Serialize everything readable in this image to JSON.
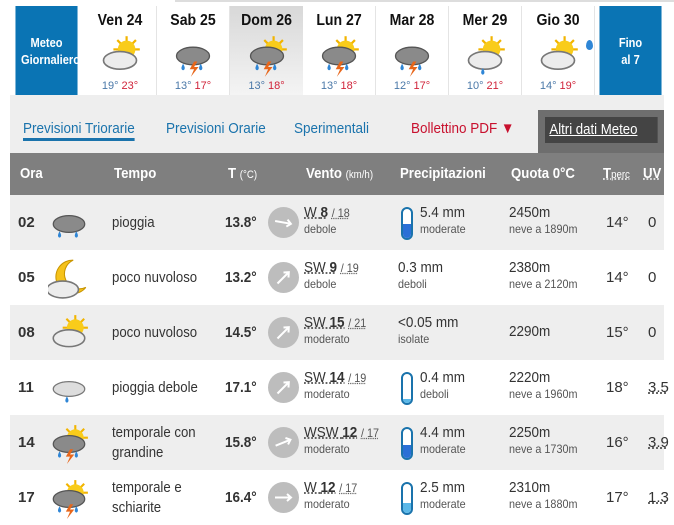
{
  "nav": {
    "daily_label": "Meteo Giornaliero",
    "until_label": "Fino al 7"
  },
  "days": [
    {
      "name": "Ven 24",
      "min": "19°",
      "max": "23°",
      "icon": "sun-cloud-icon"
    },
    {
      "name": "Sab 25",
      "min": "13°",
      "max": "17°",
      "icon": "thunderstorm-icon"
    },
    {
      "name": "Dom 26",
      "min": "13°",
      "max": "18°",
      "icon": "sun-thunderstorm-icon",
      "selected": true
    },
    {
      "name": "Lun 27",
      "min": "13°",
      "max": "18°",
      "icon": "sun-thunderstorm-icon"
    },
    {
      "name": "Mar 28",
      "min": "12°",
      "max": "17°",
      "icon": "thunderstorm-icon"
    },
    {
      "name": "Mer 29",
      "min": "10°",
      "max": "21°",
      "icon": "sun-cloud-rain-icon"
    },
    {
      "name": "Gio 30",
      "min": "14°",
      "max": "19°",
      "icon": "sun-cloud-icon"
    }
  ],
  "tabs": [
    {
      "label": "Previsioni Triorarie",
      "active": true
    },
    {
      "label": "Previsioni Orarie"
    },
    {
      "label": "Sperimentali"
    }
  ],
  "pdf_label": "Bollettino PDF ▼",
  "altri_label": "Altri dati Meteo",
  "header": {
    "ora": "Ora",
    "tempo": "Tempo",
    "t": "T",
    "t_unit": "(°C)",
    "vento": "Vento",
    "vento_unit": "(km/h)",
    "precip": "Precipitazioni",
    "quota": "Quota 0°C",
    "tperc": "T",
    "tperc_sub": "perc",
    "uv": "UV"
  },
  "colors": {
    "accent": "#0a74b4",
    "header": "#7f7f7f",
    "min": "#4a78a8",
    "max": "#d0243a",
    "pdf": "#c8102e"
  },
  "rows": [
    {
      "ora": "02",
      "icon": "rain-cloud-icon",
      "desc": "pioggia",
      "temp": "13.8°",
      "dir": "W",
      "speed": "8",
      "gust": "18",
      "wclass": "debole",
      "wangle": 10,
      "precip": "5.4 mm",
      "pclass": "moderate",
      "pfill": 0.5,
      "pcolor": "#2a6fd6",
      "quota": "2450m",
      "neve": "neve a 1890m",
      "tperc": "14°",
      "uv": "0"
    },
    {
      "ora": "05",
      "icon": "moon-cloud-icon",
      "desc": "poco nuvoloso",
      "temp": "13.2°",
      "dir": "SW",
      "speed": "9",
      "gust": "19",
      "wclass": "debole",
      "wangle": -45,
      "precip": "0.3 mm",
      "pclass": "deboli",
      "quota": "2380m",
      "neve": "neve a 2120m",
      "tperc": "14°",
      "uv": "0"
    },
    {
      "ora": "08",
      "icon": "sun-cloud-icon",
      "desc": "poco nuvoloso",
      "temp": "14.5°",
      "dir": "SW",
      "speed": "15",
      "gust": "21",
      "wclass": "moderato",
      "wangle": -45,
      "precip": "<0.05 mm",
      "pclass": "isolate",
      "quota": "2290m",
      "neve": "",
      "tperc": "15°",
      "uv": "0"
    },
    {
      "ora": "11",
      "icon": "light-rain-cloud-icon",
      "desc": "pioggia debole",
      "temp": "17.1°",
      "dir": "SW",
      "speed": "14",
      "gust": "19",
      "wclass": "moderato",
      "wangle": -45,
      "precip": "0.4 mm",
      "pclass": "deboli",
      "pfill": 0.15,
      "pcolor": "#5bb8e8",
      "quota": "2220m",
      "neve": "neve a 1960m",
      "tperc": "18°",
      "uv": "3.5"
    },
    {
      "ora": "14",
      "icon": "sun-thunderstorm-icon",
      "desc": "temporale con|grandine",
      "temp": "15.8°",
      "dir": "WSW",
      "speed": "12",
      "gust": "17",
      "wclass": "moderato",
      "wangle": -22,
      "precip": "4.4 mm",
      "pclass": "moderate",
      "pfill": 0.45,
      "pcolor": "#2a6fd6",
      "quota": "2250m",
      "neve": "neve a 1730m",
      "tperc": "16°",
      "uv": "3.9"
    },
    {
      "ora": "17",
      "icon": "sun-thunderstorm-icon",
      "desc": "temporale e|schiarite",
      "temp": "16.4°",
      "dir": "W",
      "speed": "12",
      "gust": "17",
      "wclass": "moderato",
      "wangle": 0,
      "precip": "2.5 mm",
      "pclass": "moderate",
      "pfill": 0.35,
      "pcolor": "#5bb8e8",
      "quota": "2310m",
      "neve": "neve a 1880m",
      "tperc": "17°",
      "uv": "1.3"
    }
  ]
}
